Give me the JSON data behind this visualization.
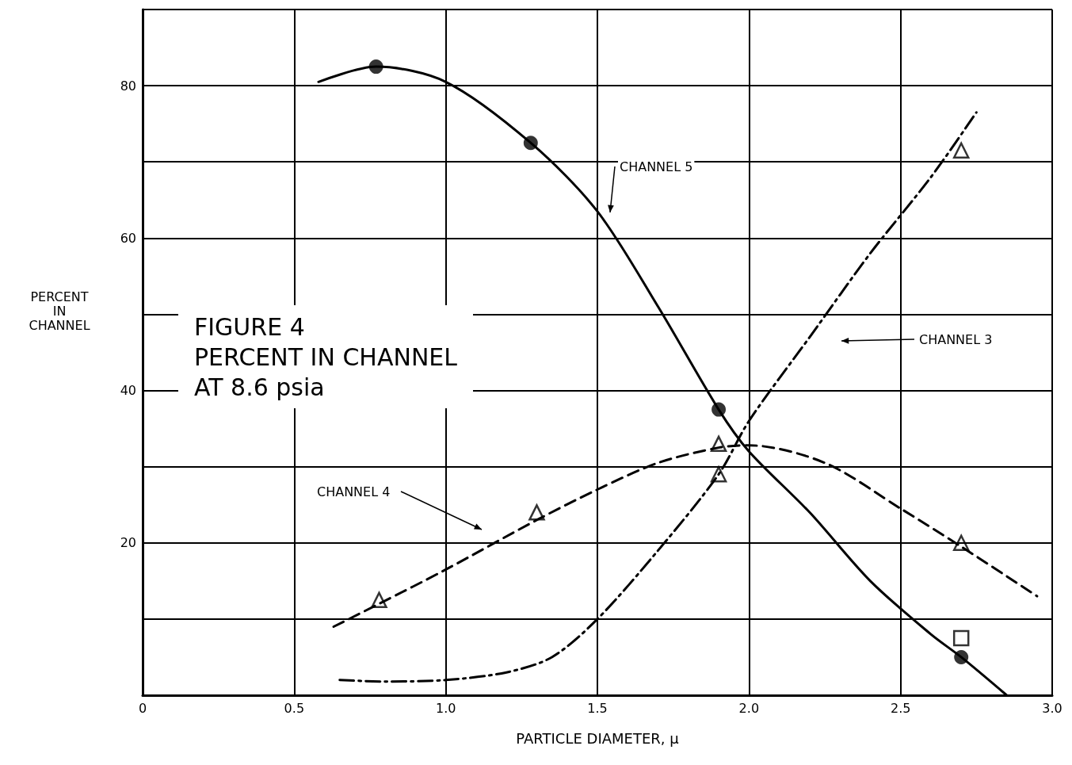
{
  "chart_data": {
    "type": "line",
    "title": "FIGURE 4\nPERCENT IN CHANNEL\nAT 8.6 psia",
    "xlabel": "PARTICLE DIAMETER, μ",
    "ylabel": "PERCENT\nIN\nCHANNEL",
    "xlim": [
      0,
      3.0
    ],
    "ylim": [
      0,
      90
    ],
    "xticks": [
      {
        "value": 0,
        "label": "0"
      },
      {
        "value": 0.5,
        "label": "0.5"
      },
      {
        "value": 1.0,
        "label": "1.0"
      },
      {
        "value": 1.5,
        "label": "1.5"
      },
      {
        "value": 2.0,
        "label": "2.0"
      },
      {
        "value": 2.5,
        "label": "2.5"
      },
      {
        "value": 3.0,
        "label": "3.0"
      }
    ],
    "yticks": [
      {
        "value": 0,
        "label": null
      },
      {
        "value": 10,
        "label": null
      },
      20,
      {
        "value": 30,
        "label": null
      },
      40,
      {
        "value": 50,
        "label": null
      },
      60,
      {
        "value": 70,
        "label": null
      },
      80,
      {
        "value": 90,
        "label": null
      }
    ],
    "grid": true,
    "series": [
      {
        "color": "#000000",
        "line_style": "solid",
        "marker": "none",
        "x": [
          0.58,
          0.77,
          1.0,
          1.28,
          1.5,
          1.7,
          1.9,
          2.0,
          2.2,
          2.4,
          2.6,
          2.7,
          2.85
        ],
        "values": [
          80.5,
          82.5,
          80.5,
          72.5,
          63.5,
          51,
          37.5,
          32,
          24,
          15,
          8,
          5,
          0
        ]
      },
      {
        "type": "scatter",
        "color": "#000000",
        "marker": "circle",
        "x": [
          0.77,
          1.28,
          1.9,
          2.7
        ],
        "values": [
          82.5,
          72.5,
          37.5,
          5
        ]
      },
      {
        "color": "#000000",
        "line_style": "dashed",
        "marker": "none",
        "x": [
          0.63,
          0.78,
          1.0,
          1.3,
          1.5,
          1.7,
          1.9,
          2.0,
          2.25,
          2.5,
          2.7,
          2.95
        ],
        "values": [
          9,
          12,
          16.5,
          23,
          27,
          30.5,
          32.5,
          32.8,
          30.5,
          24.5,
          19.5,
          13
        ]
      },
      {
        "type": "scatter",
        "color": "#000000",
        "marker": "triangle",
        "x": [
          0.78,
          1.3,
          1.9,
          2.7
        ],
        "values": [
          12.5,
          24,
          33,
          20
        ]
      },
      {
        "color": "#000000",
        "line_style": "dashdot",
        "marker": "none",
        "x": [
          0.65,
          0.8,
          1.0,
          1.2,
          1.35,
          1.5,
          1.7,
          1.9,
          2.0,
          2.2,
          2.4,
          2.6,
          2.75
        ],
        "values": [
          2,
          1.8,
          2,
          3,
          5,
          10,
          19,
          29,
          36,
          47,
          58,
          68,
          76.5
        ]
      },
      {
        "type": "scatter",
        "color": "#000000",
        "marker": "triangle",
        "x": [
          1.9,
          2.7
        ],
        "values": [
          29,
          71.5
        ]
      },
      {
        "type": "scatter",
        "color": "#000000",
        "marker": "square",
        "x": [
          2.7
        ],
        "values": [
          7.5
        ]
      }
    ],
    "annotations": [
      "CHANNEL 5",
      "CHANNEL 4",
      "CHANNEL 3"
    ]
  }
}
